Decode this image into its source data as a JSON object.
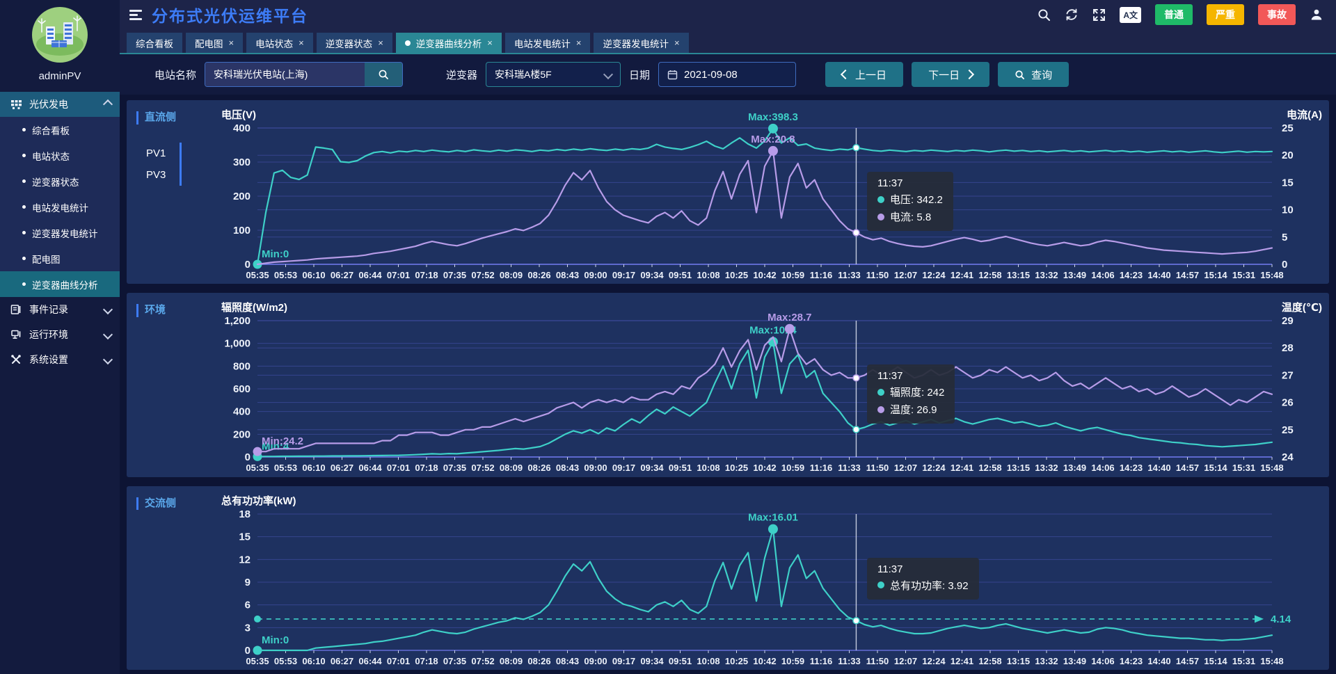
{
  "app": {
    "title": "分布式光伏运维平台",
    "user": "adminPV"
  },
  "header": {
    "actions": [
      {
        "icon": "search"
      },
      {
        "icon": "refresh"
      },
      {
        "icon": "fullscreen"
      },
      {
        "icon": "translate",
        "label": "A文"
      },
      {
        "icon": "user"
      }
    ],
    "badges": [
      {
        "label": "普通",
        "color": "#1fba68"
      },
      {
        "label": "严重",
        "color": "#f5b500"
      },
      {
        "label": "事故",
        "color": "#f25858"
      }
    ]
  },
  "sidebar": {
    "sections": [
      {
        "label": "光伏发电",
        "icon": "solar-grid",
        "expanded": true,
        "active": true,
        "children": [
          {
            "label": "综合看板"
          },
          {
            "label": "电站状态"
          },
          {
            "label": "逆变器状态"
          },
          {
            "label": "电站发电统计"
          },
          {
            "label": "逆变器发电统计"
          },
          {
            "label": "配电图"
          },
          {
            "label": "逆变器曲线分析",
            "active": true
          }
        ]
      },
      {
        "label": "事件记录",
        "icon": "event-log",
        "expanded": false
      },
      {
        "label": "运行环境",
        "icon": "environment",
        "expanded": false
      },
      {
        "label": "系统设置",
        "icon": "settings",
        "expanded": false
      }
    ]
  },
  "tabs": [
    {
      "label": "综合看板",
      "closable": false
    },
    {
      "label": "配电图",
      "closable": true
    },
    {
      "label": "电站状态",
      "closable": true
    },
    {
      "label": "逆变器状态",
      "closable": true
    },
    {
      "label": "逆变器曲线分析",
      "closable": true,
      "active": true
    },
    {
      "label": "电站发电统计",
      "closable": true
    },
    {
      "label": "逆变器发电统计",
      "closable": true
    }
  ],
  "close_glyph": "×",
  "query": {
    "station_label": "电站名称",
    "station_value": "安科瑞光伏电站(上海)",
    "inverter_label": "逆变器",
    "inverter_value": "安科瑞A楼5F",
    "date_label": "日期",
    "date_value": "2021-09-08",
    "prev_label": "上一日",
    "next_label": "下一日",
    "search_label": "查询"
  },
  "colors": {
    "teal_series": "#3ed0c8",
    "purple_series": "#b79ce8",
    "accent_blue": "#3d7cf6",
    "tab_active": "#2a8795"
  },
  "chart_data": [
    {
      "type": "line",
      "panel_label": "直流侧",
      "pv_tabs": [
        "PV1",
        "PV3"
      ],
      "left_axis": {
        "title": "电压(V)",
        "min": 0,
        "max": 400,
        "ticks": [
          400,
          300,
          200,
          100,
          0
        ],
        "labels": [
          "400",
          "300",
          "200",
          "100",
          "0"
        ]
      },
      "right_axis": {
        "title": "电流(A)",
        "min": 0,
        "max": 25,
        "ticks": [
          25,
          20,
          15,
          10,
          5,
          0
        ],
        "labels": [
          "25",
          "20",
          "15",
          "10",
          "5",
          "0"
        ]
      },
      "x_labels": [
        "05:35",
        "05:53",
        "06:10",
        "06:27",
        "06:44",
        "07:01",
        "07:18",
        "07:35",
        "07:52",
        "08:09",
        "08:26",
        "08:43",
        "09:00",
        "09:17",
        "09:34",
        "09:51",
        "10:08",
        "10:25",
        "10:42",
        "10:59",
        "11:16",
        "11:33",
        "11:50",
        "12:07",
        "12:24",
        "12:41",
        "12:58",
        "13:15",
        "13:32",
        "13:49",
        "14:06",
        "14:23",
        "14:40",
        "14:57",
        "15:14",
        "15:31",
        "15:48"
      ],
      "series": [
        {
          "name": "电压",
          "color": "#3ed0c8",
          "axis": "left",
          "max_label": "Max:398.3",
          "min_label": "Min:0",
          "values": [
            0,
            152,
            268,
            276,
            255,
            249,
            262,
            344,
            341,
            337,
            301,
            299,
            304,
            318,
            328,
            331,
            327,
            332,
            330,
            334,
            331,
            335,
            332,
            330,
            334,
            331,
            336,
            333,
            331,
            335,
            332,
            336,
            334,
            331,
            335,
            333,
            337,
            334,
            338,
            335,
            339,
            336,
            334,
            338,
            335,
            339,
            337,
            341,
            352,
            344,
            340,
            337,
            343,
            351,
            361,
            347,
            339,
            356,
            371,
            353,
            341,
            362,
            398.3,
            356,
            371,
            349,
            353,
            341,
            337,
            334,
            338,
            336,
            342.2,
            338,
            334,
            332,
            335,
            333,
            331,
            334,
            332,
            335,
            333,
            331,
            334,
            332,
            335,
            333,
            330,
            333,
            335,
            332,
            334,
            331,
            333,
            330,
            332,
            334,
            331,
            333,
            330,
            332,
            334,
            331,
            333,
            330,
            332,
            329,
            331,
            333,
            330,
            332,
            329,
            331,
            333,
            330,
            328,
            330,
            332,
            329,
            331,
            330,
            331
          ]
        },
        {
          "name": "电流",
          "color": "#b79ce8",
          "axis": "right",
          "max_label": "Max:20.8",
          "values": [
            0,
            0.2,
            0.4,
            0.5,
            0.6,
            0.7,
            0.8,
            1,
            1.1,
            1.2,
            1.3,
            1.4,
            1.5,
            1.7,
            2,
            2.2,
            2.4,
            2.7,
            3,
            3.3,
            3.8,
            4.2,
            3.9,
            3.6,
            3.4,
            3.8,
            4.3,
            4.8,
            5.2,
            5.6,
            6,
            6.5,
            6.2,
            6.8,
            7.5,
            9,
            11.5,
            14.5,
            16.8,
            15.5,
            17.2,
            14,
            11.5,
            10,
            9,
            8.5,
            8,
            7.6,
            8.8,
            9.5,
            8.5,
            9.8,
            8,
            7.2,
            8.5,
            13.5,
            17,
            12,
            16.5,
            19,
            9.5,
            18,
            20.8,
            8.5,
            16,
            18.5,
            14,
            15.5,
            12,
            10,
            8,
            6.5,
            5.8,
            5,
            4.5,
            4.8,
            4.2,
            3.8,
            3.5,
            3.3,
            3.2,
            3.4,
            3.8,
            4.2,
            4.6,
            4.9,
            4.6,
            4.2,
            4.4,
            4.8,
            5.1,
            4.7,
            4.3,
            3.9,
            3.6,
            3.4,
            3.7,
            4,
            3.7,
            3.4,
            3.6,
            4.1,
            4.4,
            4.2,
            3.9,
            3.6,
            3.3,
            3,
            2.8,
            2.6,
            2.5,
            2.4,
            2.3,
            2.2,
            2.1,
            2,
            1.9,
            2,
            2.1,
            2.2,
            2.4,
            2.7,
            3
          ]
        }
      ],
      "crosshair": {
        "time": "11:37",
        "index": 72
      },
      "tooltip": {
        "time": "11:37",
        "rows": [
          {
            "color": "#3ed0c8",
            "label": "电压",
            "value": "342.2"
          },
          {
            "color": "#b79ce8",
            "label": "电流",
            "value": "5.8"
          }
        ]
      }
    },
    {
      "type": "line",
      "panel_label": "环境",
      "left_axis": {
        "title": "辐照度(W/m2)",
        "min": 0,
        "max": 1200,
        "ticks": [
          1200,
          1000,
          800,
          600,
          400,
          200,
          0
        ],
        "labels": [
          "1,200",
          "1,000",
          "800",
          "600",
          "400",
          "200",
          "0"
        ]
      },
      "right_axis": {
        "title": "温度(℃)",
        "min": 24,
        "max": 29,
        "ticks": [
          29,
          28,
          27,
          26,
          25,
          24
        ],
        "labels": [
          "29",
          "28",
          "27",
          "26",
          "25",
          "24"
        ]
      },
      "x_labels": [
        "05:35",
        "05:53",
        "06:10",
        "06:27",
        "06:44",
        "07:01",
        "07:18",
        "07:35",
        "07:52",
        "08:09",
        "08:26",
        "08:43",
        "09:00",
        "09:17",
        "09:34",
        "09:51",
        "10:08",
        "10:25",
        "10:42",
        "10:59",
        "11:16",
        "11:33",
        "11:50",
        "12:07",
        "12:24",
        "12:41",
        "12:58",
        "13:15",
        "13:32",
        "13:49",
        "14:06",
        "14:23",
        "14:40",
        "14:57",
        "15:14",
        "15:31",
        "15:48"
      ],
      "series": [
        {
          "name": "辐照度",
          "color": "#3ed0c8",
          "axis": "left",
          "max_label": "Max:1014",
          "min_label": "Min:4",
          "values": [
            4,
            5,
            5,
            6,
            6,
            7,
            7,
            8,
            8,
            9,
            9,
            10,
            10,
            11,
            12,
            13,
            14,
            15,
            17,
            20,
            24,
            28,
            26,
            30,
            28,
            34,
            40,
            46,
            52,
            58,
            66,
            74,
            70,
            80,
            92,
            120,
            160,
            200,
            230,
            210,
            240,
            205,
            255,
            230,
            285,
            335,
            300,
            365,
            420,
            380,
            440,
            400,
            360,
            420,
            480,
            650,
            800,
            600,
            820,
            940,
            520,
            880,
            1014,
            560,
            820,
            900,
            700,
            760,
            560,
            480,
            400,
            300,
            242,
            260,
            290,
            310,
            280,
            300,
            320,
            290,
            310,
            330,
            300,
            320,
            340,
            310,
            290,
            310,
            330,
            340,
            320,
            300,
            310,
            290,
            270,
            280,
            300,
            270,
            250,
            230,
            250,
            260,
            240,
            220,
            200,
            190,
            170,
            160,
            150,
            140,
            130,
            125,
            115,
            110,
            100,
            95,
            90,
            95,
            100,
            105,
            110,
            120,
            130
          ]
        },
        {
          "name": "温度",
          "color": "#b79ce8",
          "axis": "right",
          "max_label": "Max:28.7",
          "min_label": "Min:24.2",
          "values": [
            24.2,
            24.2,
            24.3,
            24.3,
            24.3,
            24.3,
            24.4,
            24.5,
            24.5,
            24.5,
            24.5,
            24.5,
            24.5,
            24.5,
            24.5,
            24.6,
            24.6,
            24.8,
            24.8,
            24.9,
            24.9,
            24.9,
            24.8,
            24.8,
            24.9,
            25,
            25,
            25.1,
            25.1,
            25.2,
            25.3,
            25.4,
            25.3,
            25.4,
            25.5,
            25.6,
            25.8,
            25.9,
            26,
            25.8,
            26,
            26.1,
            26,
            26.1,
            26,
            26.2,
            26.1,
            26.1,
            26.3,
            26.4,
            26.3,
            26.6,
            26.5,
            26.9,
            27.1,
            27.4,
            28,
            27.3,
            27.9,
            28.3,
            27.2,
            28.1,
            28.4,
            27.5,
            28.7,
            27.8,
            27.4,
            27.6,
            27.2,
            27,
            27.1,
            26.9,
            26.9,
            27,
            27.2,
            27,
            27.1,
            27.3,
            27.1,
            26.9,
            27,
            27.2,
            27,
            27.1,
            27.3,
            27.1,
            26.9,
            27,
            27.2,
            27.1,
            27.3,
            27.1,
            26.9,
            27,
            26.8,
            26.9,
            27.1,
            26.8,
            26.6,
            26.7,
            26.5,
            26.7,
            26.9,
            26.7,
            26.5,
            26.6,
            26.4,
            26.5,
            26.3,
            26.4,
            26.6,
            26.4,
            26.2,
            26.3,
            26.5,
            26.3,
            26.1,
            25.9,
            26.1,
            26,
            26.2,
            26.4,
            26.3
          ]
        }
      ],
      "crosshair": {
        "time": "11:37",
        "index": 72
      },
      "tooltip": {
        "time": "11:37",
        "rows": [
          {
            "color": "#3ed0c8",
            "label": "辐照度",
            "value": "242"
          },
          {
            "color": "#b79ce8",
            "label": "温度",
            "value": "26.9"
          }
        ]
      }
    },
    {
      "type": "line",
      "panel_label": "交流侧",
      "left_axis": {
        "title": "总有功功率(kW)",
        "min": 0,
        "max": 18,
        "ticks": [
          18,
          15,
          12,
          9,
          6,
          3,
          0
        ],
        "labels": [
          "18",
          "15",
          "12",
          "9",
          "6",
          "3",
          "0"
        ]
      },
      "x_labels": [
        "05:35",
        "05:53",
        "06:10",
        "06:27",
        "06:44",
        "07:01",
        "07:18",
        "07:35",
        "07:52",
        "08:09",
        "08:26",
        "08:43",
        "09:00",
        "09:17",
        "09:34",
        "09:51",
        "10:08",
        "10:25",
        "10:42",
        "10:59",
        "11:16",
        "11:33",
        "11:50",
        "12:07",
        "12:24",
        "12:41",
        "12:58",
        "13:15",
        "13:32",
        "13:49",
        "14:06",
        "14:23",
        "14:40",
        "14:57",
        "15:14",
        "15:31",
        "15:48"
      ],
      "series": [
        {
          "name": "总有功功率",
          "color": "#3ed0c8",
          "axis": "left",
          "max_label": "Max:16.01",
          "min_label": "Min:0",
          "values": [
            0,
            0,
            0,
            0,
            0,
            0,
            0,
            0.3,
            0.4,
            0.5,
            0.6,
            0.7,
            0.8,
            0.9,
            1.1,
            1.2,
            1.4,
            1.6,
            1.8,
            2,
            2.4,
            2.7,
            2.5,
            2.3,
            2.2,
            2.4,
            2.8,
            3.1,
            3.4,
            3.7,
            3.9,
            4.3,
            4.1,
            4.5,
            5,
            6,
            7.8,
            9.8,
            11.4,
            10.5,
            11.7,
            9.5,
            7.8,
            6.8,
            6.1,
            5.8,
            5.4,
            5.1,
            6,
            6.4,
            5.8,
            6.6,
            5.4,
            4.9,
            5.8,
            9.2,
            11.6,
            8.1,
            11.2,
            12.9,
            6.5,
            12.2,
            16.01,
            5.8,
            10.9,
            12.6,
            9.5,
            10.5,
            8.2,
            6.8,
            5.4,
            4.4,
            3.92,
            3.4,
            3.1,
            3.3,
            2.9,
            2.6,
            2.4,
            2.2,
            2.2,
            2.3,
            2.6,
            2.9,
            3.1,
            3.3,
            3.1,
            2.9,
            3,
            3.3,
            3.5,
            3.2,
            2.9,
            2.7,
            2.5,
            2.3,
            2.5,
            2.7,
            2.5,
            2.3,
            2.4,
            2.8,
            3,
            2.9,
            2.7,
            2.4,
            2.2,
            2,
            1.9,
            1.8,
            1.7,
            1.6,
            1.6,
            1.5,
            1.4,
            1.4,
            1.3,
            1.4,
            1.4,
            1.5,
            1.6,
            1.8,
            2
          ]
        }
      ],
      "markline": {
        "value": 4.14,
        "label": "4.14"
      },
      "crosshair": {
        "time": "11:37",
        "index": 72
      },
      "tooltip": {
        "time": "11:37",
        "rows": [
          {
            "color": "#3ed0c8",
            "label": "总有功功率",
            "value": "3.92"
          }
        ]
      }
    }
  ]
}
